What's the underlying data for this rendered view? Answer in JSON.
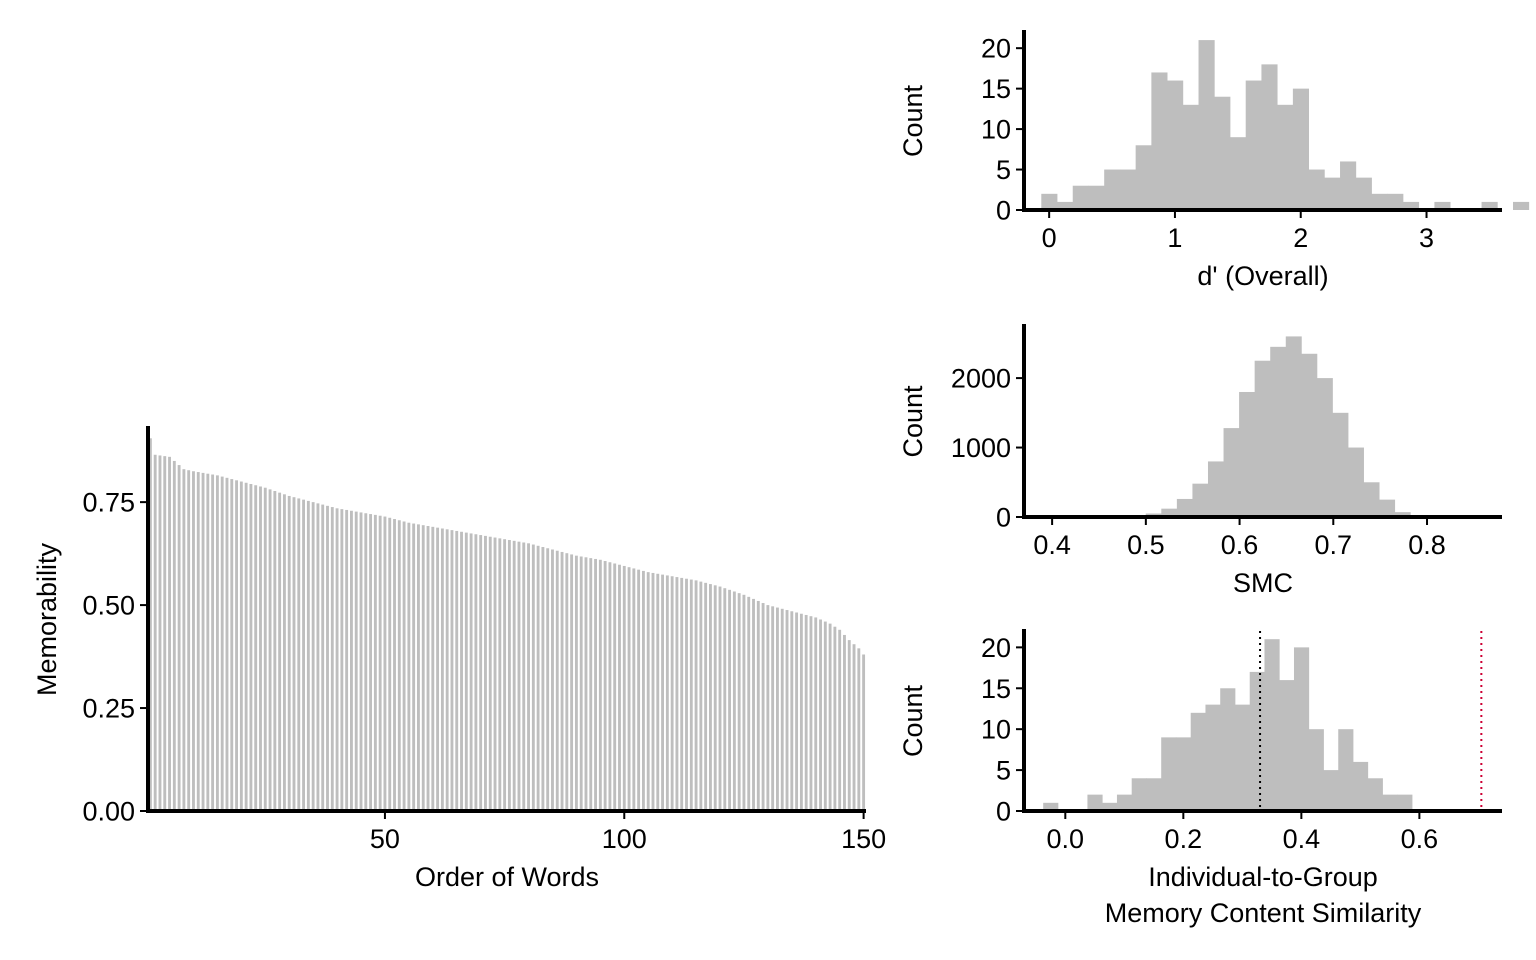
{
  "colors": {
    "bar": "#bebebe",
    "axis": "#000000",
    "reference_line_black": "#000000",
    "reference_line_red": "#cc0033"
  },
  "chart_data": [
    {
      "id": "memorability",
      "type": "bar",
      "xlabel": "Order of Words",
      "ylabel": "Memorability",
      "xlim": [
        0.5,
        150.5
      ],
      "ylim": [
        0,
        0.93
      ],
      "x_ticks": [
        50,
        100,
        150
      ],
      "x_tick_labels": [
        "50",
        "100",
        "150"
      ],
      "y_ticks": [
        0,
        0.25,
        0.5,
        0.75
      ],
      "y_tick_labels": [
        "0.00",
        "0.25",
        "0.50",
        "0.75"
      ],
      "grid": false,
      "values_start": 0.905,
      "values_anchors": [
        [
          1,
          0.905
        ],
        [
          2,
          0.865
        ],
        [
          5,
          0.86
        ],
        [
          7,
          0.84
        ],
        [
          8,
          0.83
        ],
        [
          10,
          0.825
        ],
        [
          15,
          0.815
        ],
        [
          20,
          0.8
        ],
        [
          25,
          0.785
        ],
        [
          30,
          0.765
        ],
        [
          35,
          0.75
        ],
        [
          40,
          0.735
        ],
        [
          45,
          0.725
        ],
        [
          50,
          0.715
        ],
        [
          55,
          0.7
        ],
        [
          60,
          0.69
        ],
        [
          65,
          0.68
        ],
        [
          70,
          0.67
        ],
        [
          75,
          0.66
        ],
        [
          80,
          0.65
        ],
        [
          85,
          0.635
        ],
        [
          90,
          0.62
        ],
        [
          95,
          0.61
        ],
        [
          100,
          0.595
        ],
        [
          105,
          0.58
        ],
        [
          110,
          0.57
        ],
        [
          115,
          0.56
        ],
        [
          120,
          0.545
        ],
        [
          125,
          0.525
        ],
        [
          130,
          0.5
        ],
        [
          135,
          0.485
        ],
        [
          140,
          0.47
        ],
        [
          143,
          0.455
        ],
        [
          145,
          0.44
        ],
        [
          147,
          0.415
        ],
        [
          149,
          0.395
        ],
        [
          150,
          0.38
        ]
      ]
    },
    {
      "id": "dprime",
      "type": "bar",
      "xlabel": "d' (Overall)",
      "ylabel": "Count",
      "xlim": [
        -0.2,
        3.6
      ],
      "ylim": [
        0,
        22
      ],
      "x_ticks": [
        0,
        1,
        2,
        3
      ],
      "x_tick_labels": [
        "0",
        "1",
        "2",
        "3"
      ],
      "y_ticks": [
        0,
        5,
        10,
        15,
        20
      ],
      "y_tick_labels": [
        "0",
        "5",
        "10",
        "15",
        "20"
      ],
      "bin_width": 0.125,
      "bin_start": -0.0625,
      "counts": [
        2,
        1,
        3,
        3,
        5,
        5,
        8,
        17,
        16,
        13,
        21,
        14,
        9,
        16,
        18,
        13,
        15,
        5,
        4,
        6,
        4,
        2,
        2,
        1,
        0,
        1,
        0,
        0,
        1,
        0,
        1
      ]
    },
    {
      "id": "smc",
      "type": "bar",
      "xlabel": "SMC",
      "ylabel": "Count",
      "xlim": [
        0.37,
        0.88
      ],
      "ylim": [
        0,
        2750
      ],
      "x_ticks": [
        0.4,
        0.5,
        0.6,
        0.7,
        0.8
      ],
      "x_tick_labels": [
        "0.4",
        "0.5",
        "0.6",
        "0.7",
        "0.8"
      ],
      "y_ticks": [
        0,
        1000,
        2000
      ],
      "y_tick_labels": [
        "0",
        "1000",
        "2000"
      ],
      "bin_width": 0.0166,
      "bin_start": 0.4335,
      "counts": [
        3,
        5,
        10,
        20,
        50,
        120,
        260,
        480,
        800,
        1280,
        1800,
        2250,
        2450,
        2600,
        2350,
        2000,
        1500,
        1000,
        500,
        250,
        70,
        10,
        2
      ]
    },
    {
      "id": "similarity",
      "type": "bar",
      "xlabel": [
        "Individual-to-Group",
        "Memory Content Similarity"
      ],
      "ylabel": "Count",
      "xlim": [
        -0.07,
        0.74
      ],
      "ylim": [
        0,
        22
      ],
      "x_ticks": [
        0.0,
        0.2,
        0.4,
        0.6
      ],
      "x_tick_labels": [
        "0.0",
        "0.2",
        "0.4",
        "0.6"
      ],
      "y_ticks": [
        0,
        5,
        10,
        15,
        20
      ],
      "y_tick_labels": [
        "0",
        "5",
        "10",
        "15",
        "20"
      ],
      "bin_width": 0.025,
      "bin_start": -0.0375,
      "counts": [
        1,
        0,
        0,
        2,
        1,
        2,
        4,
        4,
        9,
        9,
        12,
        13,
        15,
        13,
        17,
        21,
        16,
        20,
        10,
        5,
        10,
        6,
        4,
        2,
        2,
        0
      ],
      "reference_lines": [
        {
          "x": 0.33,
          "color": "#000000",
          "style": "dotted"
        },
        {
          "x": 0.705,
          "color": "#cc0033",
          "style": "dotted"
        }
      ]
    }
  ]
}
